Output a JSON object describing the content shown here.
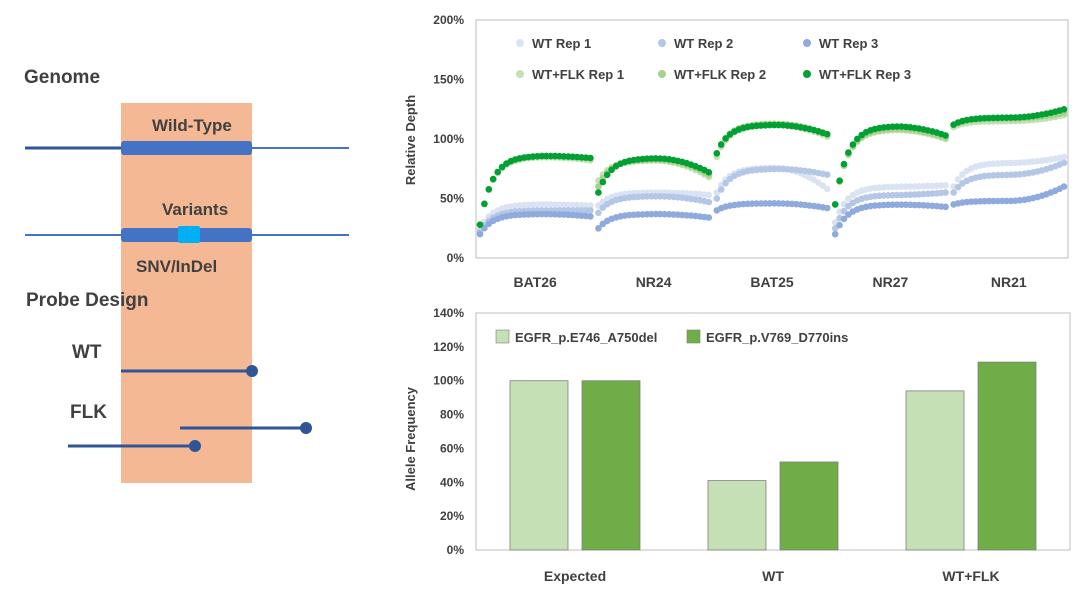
{
  "schematic": {
    "genome_label": "Genome",
    "wild_type_label": "Wild-Type",
    "variants_label": "Variants",
    "snv_label": "SNV/InDel",
    "probe_design_label": "Probe Design",
    "wt_label": "WT",
    "flk_label": "FLK",
    "colors": {
      "region_fill": "#f4b994",
      "line": "#2f5597",
      "thin_line": "#4472c4",
      "segment": "#4472c4",
      "variant": "#00b0f0"
    }
  },
  "chart_data": [
    {
      "type": "scatter",
      "title": "",
      "ylabel": "Relative Depth",
      "xlabel": "",
      "ylim": [
        0,
        200
      ],
      "yticks": [
        "0%",
        "50%",
        "100%",
        "150%",
        "200%"
      ],
      "grid": false,
      "legend_position": "top",
      "categories": [
        "BAT26",
        "NR24",
        "BAT25",
        "NR27",
        "NR21"
      ],
      "points_per_segment": 26,
      "series": [
        {
          "name": "WT Rep 1",
          "color": "#dae3f3",
          "start": [
            24,
            44,
            55,
            30,
            60
          ],
          "plateau": [
            45,
            55,
            76,
            60,
            80
          ],
          "end": [
            44,
            53,
            58,
            61,
            85
          ]
        },
        {
          "name": "WT Rep 2",
          "color": "#b4c7e7",
          "start": [
            22,
            38,
            50,
            25,
            55
          ],
          "plateau": [
            40,
            52,
            75,
            53,
            70
          ],
          "end": [
            40,
            47,
            70,
            55,
            80
          ]
        },
        {
          "name": "WT Rep 3",
          "color": "#8faadc",
          "start": [
            20,
            25,
            40,
            20,
            45
          ],
          "plateau": [
            37,
            37,
            46,
            45,
            48
          ],
          "end": [
            35,
            34,
            42,
            43,
            60
          ]
        },
        {
          "name": "WT+FLK Rep 1",
          "color": "#c5e0b4",
          "start": [
            28,
            65,
            85,
            45,
            110
          ],
          "plateau": [
            85,
            82,
            112,
            108,
            115
          ],
          "end": [
            82,
            68,
            102,
            100,
            120
          ]
        },
        {
          "name": "WT+FLK Rep 2",
          "color": "#a9d18e",
          "start": [
            28,
            60,
            88,
            45,
            112
          ],
          "plateau": [
            86,
            83,
            113,
            109,
            117
          ],
          "end": [
            84,
            70,
            104,
            101,
            122
          ]
        },
        {
          "name": "WT+FLK Rep 3",
          "color": "#00a033",
          "start": [
            28,
            55,
            88,
            45,
            112
          ],
          "plateau": [
            86,
            84,
            112,
            111,
            118
          ],
          "end": [
            84,
            72,
            104,
            103,
            125
          ]
        }
      ]
    },
    {
      "type": "bar",
      "title": "",
      "ylabel": "Allele Frequency",
      "xlabel": "",
      "ylim": [
        0,
        140
      ],
      "yticks": [
        "0%",
        "20%",
        "40%",
        "60%",
        "80%",
        "100%",
        "120%",
        "140%"
      ],
      "grid": false,
      "legend_position": "top-left",
      "categories": [
        "Expected",
        "WT",
        "WT+FLK"
      ],
      "series": [
        {
          "name": "EGFR_p.E746_A750del",
          "color": "#c5e0b4",
          "values": [
            100,
            41,
            94
          ]
        },
        {
          "name": "EGFR_p.V769_D770ins",
          "color": "#70ad47",
          "values": [
            100,
            52,
            111
          ]
        }
      ]
    }
  ]
}
